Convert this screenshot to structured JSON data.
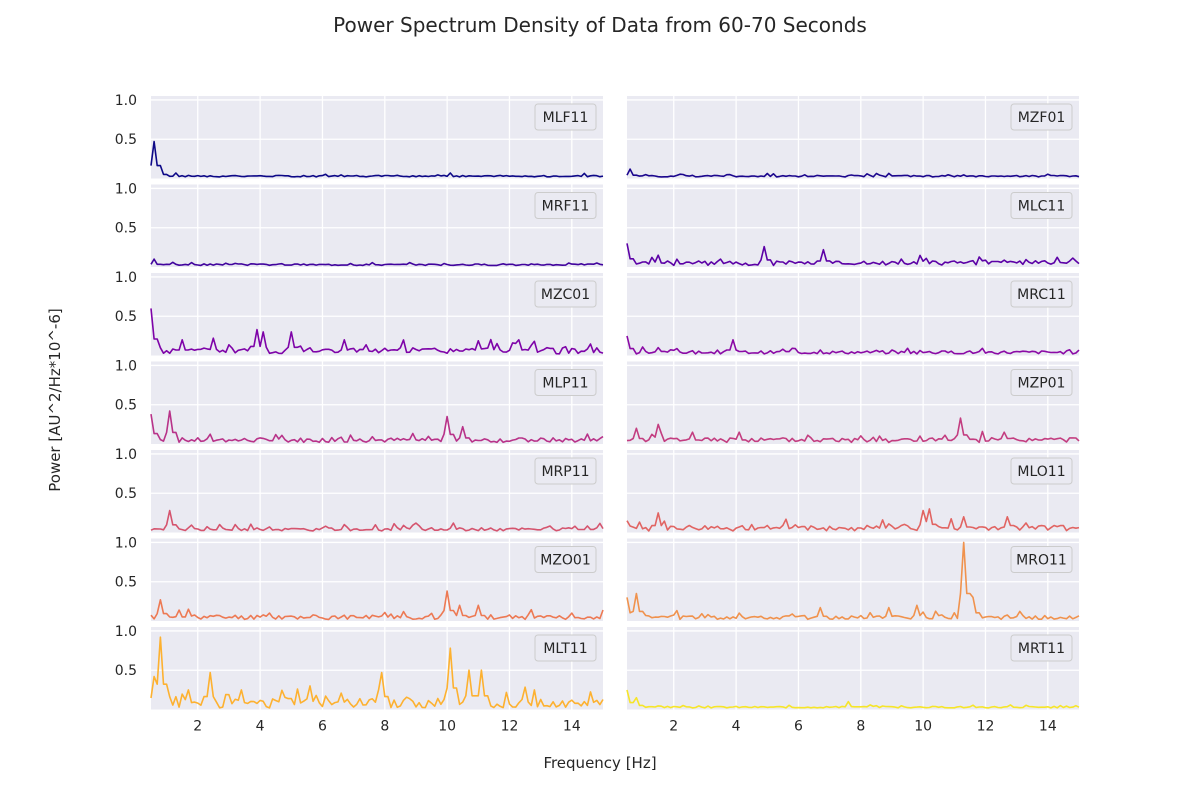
{
  "chart_data": {
    "type": "line",
    "title": "Power Spectrum Density of Data from 60-70 Seconds",
    "xlabel": "Frequency [Hz]",
    "ylabel": "Power [AU^2/Hz*10^-6]",
    "xlim": [
      0.5,
      15
    ],
    "ylim": [
      0,
      1.05
    ],
    "x_ticks": [
      2,
      4,
      6,
      8,
      10,
      12,
      14
    ],
    "y_ticks": [
      0.5,
      1.0
    ],
    "grid": true,
    "legend": "top-right",
    "colors": {
      "background": "#eaeaf2",
      "grid": "#ffffff",
      "text": "#262626"
    },
    "panels": [
      {
        "name": "MLF11",
        "color": "#0d0887",
        "peaks": [
          [
            0.6,
            0.47
          ],
          [
            0.8,
            0.15
          ],
          [
            1.3,
            0.07
          ],
          [
            10.1,
            0.07
          ],
          [
            4.6,
            0.04
          ]
        ],
        "noise": 0.02,
        "seed": 1
      },
      {
        "name": "MZF01",
        "color": "#1b068d",
        "peaks": [
          [
            0.6,
            0.12
          ],
          [
            1.1,
            0.05
          ],
          [
            2.5,
            0.03
          ]
        ],
        "noise": 0.02,
        "seed": 2
      },
      {
        "name": "MRF11",
        "color": "#41049d",
        "peaks": [
          [
            0.6,
            0.1
          ],
          [
            1.2,
            0.06
          ],
          [
            1.8,
            0.04
          ]
        ],
        "noise": 0.02,
        "seed": 3
      },
      {
        "name": "MLC11",
        "color": "#5c01a6",
        "peaks": [
          [
            0.5,
            0.3
          ],
          [
            1.5,
            0.15
          ],
          [
            3.5,
            0.1
          ],
          [
            4.9,
            0.26
          ],
          [
            6.8,
            0.22
          ],
          [
            9.3,
            0.1
          ]
        ],
        "noise": 0.06,
        "seed": 4
      },
      {
        "name": "MZC01",
        "color": "#7e03a8",
        "peaks": [
          [
            0.5,
            0.6
          ],
          [
            1.5,
            0.2
          ],
          [
            2.5,
            0.22
          ],
          [
            3.9,
            0.33
          ],
          [
            4.1,
            0.3
          ],
          [
            5.0,
            0.3
          ],
          [
            6.7,
            0.2
          ],
          [
            12.3,
            0.2
          ]
        ],
        "noise": 0.08,
        "seed": 5
      },
      {
        "name": "MRC11",
        "color": "#8b0aa5",
        "peaks": [
          [
            0.5,
            0.25
          ],
          [
            1.5,
            0.1
          ],
          [
            3.9,
            0.2
          ],
          [
            5.5,
            0.08
          ],
          [
            6.7,
            0.07
          ]
        ],
        "noise": 0.04,
        "seed": 6
      },
      {
        "name": "MLP11",
        "color": "#b83289",
        "peaks": [
          [
            0.5,
            0.38
          ],
          [
            1.1,
            0.42
          ],
          [
            4.5,
            0.12
          ],
          [
            10.0,
            0.35
          ],
          [
            10.5,
            0.22
          ],
          [
            14.0,
            0.06
          ]
        ],
        "noise": 0.06,
        "seed": 7
      },
      {
        "name": "MZP01",
        "color": "#c33d80",
        "peaks": [
          [
            0.8,
            0.2
          ],
          [
            1.5,
            0.25
          ],
          [
            2.6,
            0.15
          ],
          [
            4.1,
            0.15
          ],
          [
            9.9,
            0.1
          ],
          [
            11.2,
            0.33
          ],
          [
            12.6,
            0.15
          ]
        ],
        "noise": 0.06,
        "seed": 8
      },
      {
        "name": "MRP11",
        "color": "#d5546e",
        "peaks": [
          [
            1.1,
            0.28
          ],
          [
            2.7,
            0.1
          ],
          [
            6.1,
            0.08
          ],
          [
            9.0,
            0.12
          ],
          [
            10.2,
            0.12
          ],
          [
            14.1,
            0.08
          ]
        ],
        "noise": 0.04,
        "seed": 9
      },
      {
        "name": "MLO11",
        "color": "#e16462",
        "peaks": [
          [
            0.5,
            0.15
          ],
          [
            1.5,
            0.25
          ],
          [
            4.5,
            0.1
          ],
          [
            8.7,
            0.16
          ],
          [
            10.0,
            0.28
          ],
          [
            10.2,
            0.3
          ],
          [
            11.3,
            0.2
          ],
          [
            12.7,
            0.2
          ]
        ],
        "noise": 0.07,
        "seed": 10
      },
      {
        "name": "MZO01",
        "color": "#ed7953",
        "peaks": [
          [
            0.8,
            0.27
          ],
          [
            1.7,
            0.15
          ],
          [
            8.6,
            0.12
          ],
          [
            10.0,
            0.38
          ],
          [
            10.4,
            0.2
          ],
          [
            11.0,
            0.2
          ],
          [
            14.0,
            0.1
          ]
        ],
        "noise": 0.06,
        "seed": 11
      },
      {
        "name": "MRO11",
        "color": "#f0924d",
        "peaks": [
          [
            0.5,
            0.3
          ],
          [
            0.8,
            0.35
          ],
          [
            4.1,
            0.1
          ],
          [
            6.7,
            0.17
          ],
          [
            8.9,
            0.17
          ],
          [
            9.8,
            0.2
          ],
          [
            11.3,
            1.0
          ],
          [
            11.6,
            0.3
          ]
        ],
        "noise": 0.05,
        "seed": 12
      },
      {
        "name": "MLT11",
        "color": "#fdb130",
        "peaks": [
          [
            0.6,
            0.42
          ],
          [
            0.8,
            0.92
          ],
          [
            1.7,
            0.25
          ],
          [
            2.4,
            0.47
          ],
          [
            3.4,
            0.25
          ],
          [
            5.6,
            0.3
          ],
          [
            7.9,
            0.47
          ],
          [
            10.1,
            0.78
          ],
          [
            10.7,
            0.5
          ],
          [
            11.1,
            0.5
          ],
          [
            12.5,
            0.15
          ]
        ],
        "noise": 0.12,
        "seed": 13
      },
      {
        "name": "MRT11",
        "color": "#f6e529",
        "peaks": [
          [
            0.5,
            0.25
          ],
          [
            0.8,
            0.15
          ],
          [
            7.6,
            0.1
          ]
        ],
        "noise": 0.02,
        "seed": 14
      }
    ]
  }
}
